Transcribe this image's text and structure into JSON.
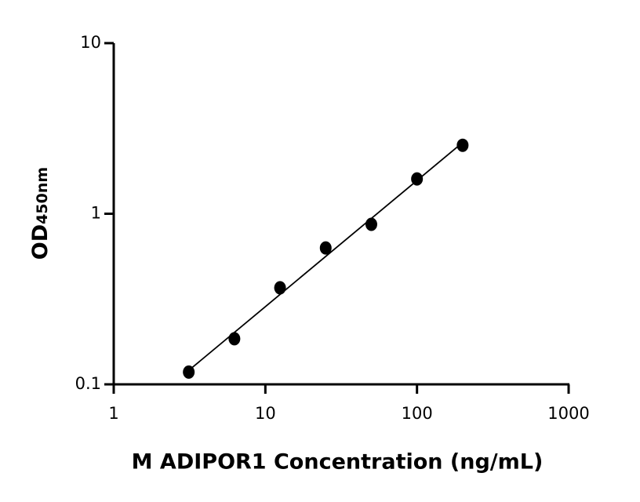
{
  "chart_data": {
    "type": "scatter",
    "x_label": "M ADIPOR1 Concentration (ng/mL)",
    "y_label": "OD",
    "y_label_sub": "450nm",
    "x": [
      3.125,
      6.25,
      12.5,
      25,
      50,
      100,
      200
    ],
    "values": [
      0.118,
      0.185,
      0.368,
      0.63,
      0.867,
      1.6,
      2.52
    ],
    "color": "#000000",
    "xlim": [
      1,
      1000
    ],
    "xticks": [
      1,
      10,
      100,
      1000
    ],
    "ylim": [
      0.1,
      10
    ],
    "yticks": [
      0.1,
      1,
      10
    ],
    "xscale": "log",
    "yscale": "log",
    "fit_line": true
  }
}
